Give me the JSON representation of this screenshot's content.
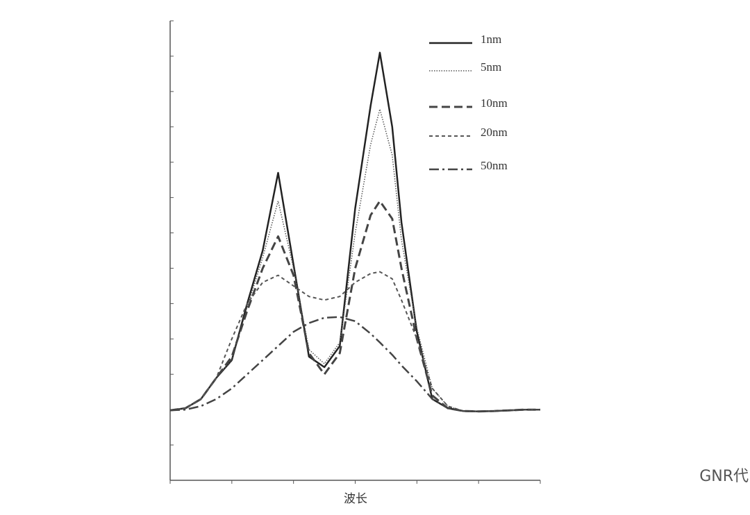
{
  "chart_data": {
    "type": "line",
    "x_label": "波长",
    "x": [
      0,
      0.25,
      0.5,
      0.75,
      1,
      1.25,
      1.5,
      1.75,
      2,
      2.25,
      2.5,
      2.75,
      3,
      3.25,
      3.4,
      3.6,
      3.75,
      4,
      4.25,
      4.5,
      4.75,
      5,
      5.25,
      5.5,
      5.75,
      6
    ],
    "series": [
      {
        "name": "1nm",
        "color": "#222222",
        "dash": "solid",
        "values": [
          1.98,
          2.04,
          2.3,
          2.9,
          3.4,
          5.0,
          6.5,
          8.7,
          6.1,
          3.5,
          3.2,
          3.8,
          7.7,
          10.6,
          12.1,
          10.0,
          7.3,
          4.2,
          2.3,
          2.04,
          1.96,
          1.95,
          1.96,
          1.98,
          2.0,
          2.0
        ]
      },
      {
        "name": "5nm",
        "color": "#555555",
        "dash": "dotted",
        "values": [
          1.98,
          2.04,
          2.3,
          2.9,
          3.4,
          4.9,
          6.3,
          7.9,
          6.0,
          3.7,
          3.3,
          3.9,
          7.0,
          9.5,
          10.5,
          9.2,
          6.8,
          4.3,
          2.6,
          2.1,
          1.96,
          1.95,
          1.96,
          1.98,
          2.0,
          2.0
        ]
      },
      {
        "name": "10nm",
        "color": "#444444",
        "dash": "dashed",
        "values": [
          1.98,
          2.04,
          2.3,
          2.9,
          3.5,
          4.8,
          6.0,
          6.9,
          5.8,
          3.6,
          3.0,
          3.6,
          6.0,
          7.5,
          7.9,
          7.4,
          6.0,
          4.0,
          2.4,
          2.04,
          1.96,
          1.95,
          1.96,
          1.98,
          2.0,
          2.0
        ]
      },
      {
        "name": "20nm",
        "color": "#555555",
        "dash": "short-dashed",
        "values": [
          1.98,
          2.04,
          2.3,
          2.9,
          4.0,
          5.0,
          5.6,
          5.8,
          5.5,
          5.2,
          5.1,
          5.2,
          5.6,
          5.85,
          5.9,
          5.7,
          5.1,
          4.0,
          2.6,
          2.1,
          1.96,
          1.95,
          1.96,
          1.98,
          2.0,
          2.0
        ]
      },
      {
        "name": "50nm",
        "color": "#444444",
        "dash": "dash-dot",
        "values": [
          1.98,
          2.0,
          2.1,
          2.3,
          2.6,
          3.0,
          3.4,
          3.8,
          4.2,
          4.45,
          4.6,
          4.62,
          4.5,
          4.15,
          3.9,
          3.55,
          3.25,
          2.8,
          2.3,
          2.05,
          1.96,
          1.95,
          1.96,
          1.98,
          2.0,
          2.0
        ]
      }
    ],
    "xlim": [
      0,
      6
    ],
    "xticks": [
      0,
      1,
      2,
      3,
      4,
      5,
      6
    ],
    "ylim": [
      0,
      13
    ],
    "yticks": [
      0,
      1,
      2,
      3,
      4,
      5,
      6,
      7,
      8,
      9,
      10,
      11,
      12,
      13
    ],
    "legend": "upper-right",
    "watermark": "GNR代"
  }
}
